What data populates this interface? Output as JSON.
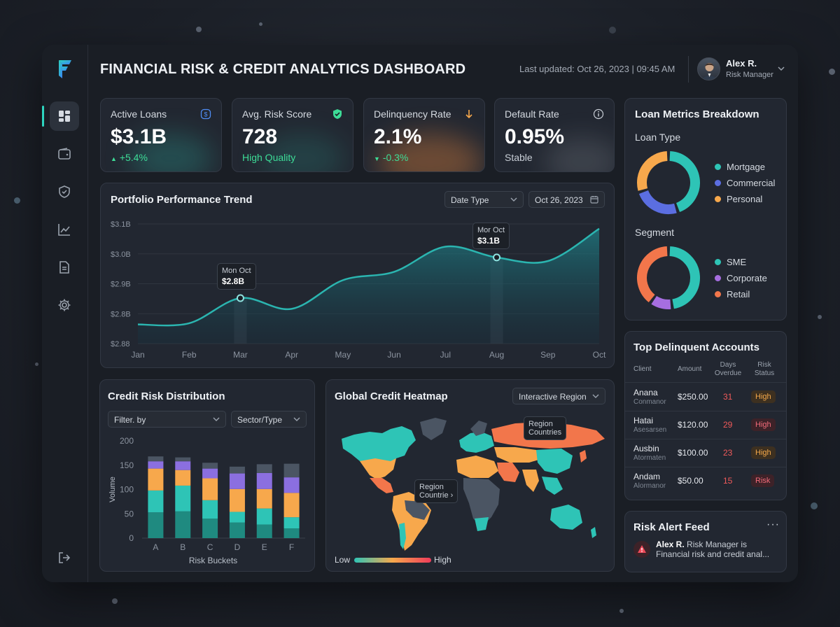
{
  "header": {
    "title": "FINANCIAL RISK & CREDIT ANALYTICS DASHBOARD",
    "updated": "Last updated: Oct 26, 2023 | 09:45 AM",
    "user_name": "Alex R.",
    "user_role": "Risk Manager"
  },
  "sidebar": {
    "items": [
      {
        "icon": "dashboard-icon"
      },
      {
        "icon": "wallet-icon"
      },
      {
        "icon": "shield-check-icon"
      },
      {
        "icon": "line-chart-icon"
      },
      {
        "icon": "document-icon"
      },
      {
        "icon": "gear-icon"
      }
    ],
    "logout_icon": "logout-icon"
  },
  "kpis": [
    {
      "label": "Active Loans",
      "value": "$3.1B",
      "sub": "+5.4%",
      "sub_color": "#3ddc97",
      "icon": "dollar-icon"
    },
    {
      "label": "Avg. Risk Score",
      "value": "728",
      "sub": "High Quality",
      "sub_color": "#3ddc97",
      "icon": "shield-check-icon"
    },
    {
      "label": "Delinquency Rate",
      "value": "2.1%",
      "sub": "-0.3%",
      "sub_color": "#3ddc97",
      "icon": "arrow-down-icon"
    },
    {
      "label": "Default Rate",
      "value": "0.95%",
      "sub": "Stable",
      "sub_color": "#c8ced6",
      "icon": "info-icon"
    }
  ],
  "trend": {
    "title": "Portfolio Performance Trend",
    "date_type": "Date Type",
    "date": "Oct 26, 2023",
    "tooltip1_label": "Mon Oct",
    "tooltip1_value": "$2.8B",
    "tooltip2_label": "Mor Oct",
    "tooltip2_value": "$3.1B"
  },
  "chart_data": [
    {
      "type": "area",
      "title": "Portfolio Performance Trend",
      "x": [
        "Jan",
        "Feb",
        "Mar",
        "Apr",
        "May",
        "Jun",
        "Jul",
        "Aug",
        "Sep",
        "Oct"
      ],
      "y_tick_labels": [
        "$3.1B",
        "$3.0B",
        "$2.9B",
        "$2.8B",
        "$2.88"
      ],
      "values": [
        0.16,
        0.17,
        0.38,
        0.29,
        0.53,
        0.6,
        0.81,
        0.72,
        0.69,
        0.96
      ],
      "value_scale": "fraction of y-axis height",
      "highlighted": [
        "Mar",
        "Aug"
      ],
      "color": "#2bb5b0"
    },
    {
      "type": "bar",
      "title": "Credit Risk Distribution",
      "xlabel": "Risk Buckets",
      "ylabel": "Volume",
      "ylim": [
        0,
        200
      ],
      "yticks": [
        0,
        50,
        100,
        150,
        200
      ],
      "categories": [
        "A",
        "B",
        "C",
        "D",
        "E",
        "F"
      ],
      "stacked": true,
      "series": [
        {
          "color": "#1f8a80",
          "values": [
            53,
            55,
            40,
            32,
            28,
            20
          ]
        },
        {
          "color": "#2ec4b6",
          "values": [
            45,
            53,
            38,
            22,
            33,
            23
          ]
        },
        {
          "color": "#f7a84c",
          "values": [
            45,
            32,
            45,
            47,
            40,
            50
          ]
        },
        {
          "color": "#8b6fe0",
          "values": [
            15,
            18,
            20,
            32,
            33,
            32
          ]
        },
        {
          "color": "#4b5563",
          "values": [
            10,
            8,
            12,
            14,
            18,
            28
          ]
        }
      ]
    },
    {
      "type": "pie",
      "title": "Loan Type",
      "labels": [
        "Mortgage",
        "Commercial",
        "Personal"
      ],
      "values": [
        45,
        25,
        30
      ],
      "colors": [
        "#2ec4b6",
        "#5b6ee1",
        "#f7a84c"
      ]
    },
    {
      "type": "pie",
      "title": "Segment",
      "labels": [
        "SME",
        "Corporate",
        "Retail"
      ],
      "values": [
        48,
        12,
        40
      ],
      "colors": [
        "#2ec4b6",
        "#a66ee0",
        "#f2764b",
        "#5b6ee1"
      ]
    }
  ],
  "distribution": {
    "title": "Credit Risk Distribution",
    "filter": "Filter. by",
    "sector": "Sector/Type",
    "ylabel": "Volume",
    "xlabel": "Risk Buckets"
  },
  "heatmap": {
    "title": "Global Credit Heatmap",
    "region_select": "Interactive Region",
    "tip1_line1": "Region",
    "tip1_line2": "Countries",
    "tip2_line1": "Region",
    "tip2_line2": "Countrie",
    "low": "Low",
    "high": "High"
  },
  "breakdown": {
    "title": "Loan Metrics Breakdown",
    "loan_type": "Loan Type",
    "segment": "Segment",
    "loan_items": [
      {
        "label": "Mortgage",
        "color": "#2ec4b6"
      },
      {
        "label": "Commercial",
        "color": "#5b6ee1"
      },
      {
        "label": "Personal",
        "color": "#f7a84c"
      }
    ],
    "segment_items": [
      {
        "label": "SME",
        "color": "#2ec4b6"
      },
      {
        "label": "Corporate",
        "color": "#a66ee0"
      },
      {
        "label": "Retail",
        "color": "#f2764b"
      }
    ]
  },
  "delinquent": {
    "title": "Top Delinquent Accounts",
    "col_client": "Client",
    "col_amount": "Amount",
    "col_days_1": "Days",
    "col_days_2": "Overdue",
    "col_risk_1": "Risk",
    "col_risk_2": "Status",
    "rows": [
      {
        "name": "Anana",
        "sub": "Conmanor",
        "amount": "$250.00",
        "days": "31",
        "status": "High",
        "kind": "high"
      },
      {
        "name": "Hatai",
        "sub": "Asesarsen",
        "amount": "$120.00",
        "days": "29",
        "status": "High",
        "kind": "risk"
      },
      {
        "name": "Ausbin",
        "sub": "Atormaten",
        "amount": "$100.00",
        "days": "23",
        "status": "High",
        "kind": "high"
      },
      {
        "name": "Andam",
        "sub": "Alormanor",
        "amount": "$50.00",
        "days": "15",
        "status": "Risk",
        "kind": "risk"
      }
    ]
  },
  "alerts": {
    "title": "Risk Alert Feed",
    "more": "···",
    "line1_name": "Alex R.",
    "line1_rest": " Risk Manager is",
    "line2": "Financial risk and credit anal..."
  }
}
